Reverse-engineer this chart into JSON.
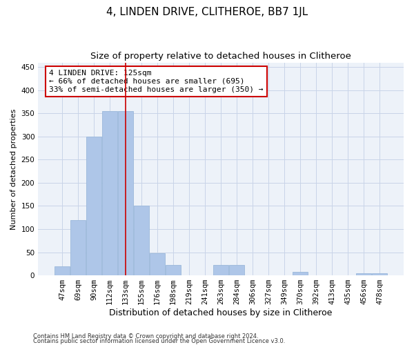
{
  "title": "4, LINDEN DRIVE, CLITHEROE, BB7 1JL",
  "subtitle": "Size of property relative to detached houses in Clitheroe",
  "xlabel": "Distribution of detached houses by size in Clitheroe",
  "ylabel": "Number of detached properties",
  "footer1": "Contains HM Land Registry data © Crown copyright and database right 2024.",
  "footer2": "Contains public sector information licensed under the Open Government Licence v3.0.",
  "bar_labels": [
    "47sqm",
    "69sqm",
    "90sqm",
    "112sqm",
    "133sqm",
    "155sqm",
    "176sqm",
    "198sqm",
    "219sqm",
    "241sqm",
    "263sqm",
    "284sqm",
    "306sqm",
    "327sqm",
    "349sqm",
    "370sqm",
    "392sqm",
    "413sqm",
    "435sqm",
    "456sqm",
    "478sqm"
  ],
  "bar_values": [
    20,
    120,
    300,
    355,
    355,
    150,
    48,
    22,
    0,
    0,
    22,
    22,
    0,
    0,
    0,
    8,
    0,
    0,
    0,
    5,
    5
  ],
  "bar_color": "#aec6e8",
  "bar_edge_color": "#9ab8da",
  "highlight_line_color": "#cc0000",
  "annotation_text": "4 LINDEN DRIVE: 125sqm\n← 66% of detached houses are smaller (695)\n33% of semi-detached houses are larger (350) →",
  "annotation_box_color": "white",
  "annotation_box_edge_color": "#cc0000",
  "ylim": [
    0,
    460
  ],
  "yticks": [
    0,
    50,
    100,
    150,
    200,
    250,
    300,
    350,
    400,
    450
  ],
  "grid_color": "#c8d4e8",
  "bg_color": "#edf2f9",
  "title_fontsize": 11,
  "subtitle_fontsize": 9.5,
  "xlabel_fontsize": 9,
  "ylabel_fontsize": 8,
  "tick_fontsize": 7.5,
  "annotation_fontsize": 8
}
